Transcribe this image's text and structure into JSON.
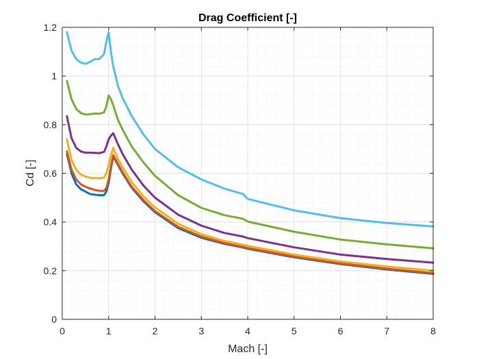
{
  "chart_data": {
    "type": "line",
    "title": "Drag Coefficient [-]",
    "xlabel": "Mach [-]",
    "ylabel": "Cd [-]",
    "xlim": [
      0,
      8
    ],
    "ylim": [
      0,
      1.2
    ],
    "xticks": [
      "0",
      "1",
      "2",
      "3",
      "4",
      "5",
      "6",
      "7",
      "8"
    ],
    "yticks": [
      "0",
      "0.2",
      "0.4",
      "0.6",
      "0.8",
      "1",
      "1.2"
    ],
    "grid": true,
    "minor_grid": true,
    "legend": "none",
    "series": [
      {
        "color": "#0072BD",
        "x": [
          0.1,
          0.2,
          0.3,
          0.4,
          0.5,
          0.6,
          0.7,
          0.8,
          0.9,
          0.95,
          1.0,
          1.05,
          1.1,
          1.2,
          1.3,
          1.5,
          1.75,
          2.0,
          2.5,
          3.0,
          3.5,
          3.9,
          4.0,
          5.0,
          6.0,
          7.0,
          8.0
        ],
        "y": [
          0.68,
          0.6,
          0.555,
          0.535,
          0.525,
          0.515,
          0.512,
          0.51,
          0.51,
          0.525,
          0.56,
          0.62,
          0.67,
          0.635,
          0.6,
          0.54,
          0.485,
          0.44,
          0.375,
          0.335,
          0.31,
          0.295,
          0.29,
          0.255,
          0.227,
          0.205,
          0.187
        ]
      },
      {
        "color": "#D95319",
        "x": [
          0.1,
          0.2,
          0.3,
          0.4,
          0.5,
          0.6,
          0.7,
          0.8,
          0.9,
          0.95,
          1.0,
          1.05,
          1.1,
          1.2,
          1.3,
          1.5,
          1.75,
          2.0,
          2.5,
          3.0,
          3.5,
          3.9,
          4.0,
          5.0,
          6.0,
          7.0,
          8.0
        ],
        "y": [
          0.69,
          0.615,
          0.575,
          0.555,
          0.545,
          0.538,
          0.532,
          0.528,
          0.528,
          0.54,
          0.575,
          0.63,
          0.675,
          0.64,
          0.605,
          0.545,
          0.49,
          0.445,
          0.38,
          0.34,
          0.313,
          0.298,
          0.293,
          0.258,
          0.23,
          0.208,
          0.19
        ]
      },
      {
        "color": "#EDB120",
        "x": [
          0.1,
          0.2,
          0.3,
          0.4,
          0.5,
          0.6,
          0.7,
          0.8,
          0.9,
          0.95,
          1.0,
          1.05,
          1.1,
          1.2,
          1.3,
          1.5,
          1.75,
          2.0,
          2.5,
          3.0,
          3.5,
          3.9,
          4.0,
          5.0,
          6.0,
          7.0,
          8.0
        ],
        "y": [
          0.74,
          0.655,
          0.615,
          0.595,
          0.587,
          0.582,
          0.58,
          0.58,
          0.582,
          0.6,
          0.635,
          0.675,
          0.705,
          0.66,
          0.625,
          0.565,
          0.505,
          0.46,
          0.393,
          0.35,
          0.322,
          0.307,
          0.302,
          0.266,
          0.238,
          0.217,
          0.2
        ]
      },
      {
        "color": "#7E2F8E",
        "x": [
          0.1,
          0.2,
          0.3,
          0.4,
          0.5,
          0.6,
          0.7,
          0.8,
          0.9,
          0.95,
          1.0,
          1.05,
          1.1,
          1.2,
          1.3,
          1.5,
          1.75,
          2.0,
          2.5,
          3.0,
          3.5,
          3.9,
          4.0,
          5.0,
          6.0,
          7.0,
          8.0
        ],
        "y": [
          0.835,
          0.745,
          0.705,
          0.69,
          0.685,
          0.685,
          0.684,
          0.683,
          0.688,
          0.71,
          0.74,
          0.755,
          0.765,
          0.72,
          0.68,
          0.615,
          0.55,
          0.5,
          0.43,
          0.385,
          0.355,
          0.34,
          0.334,
          0.296,
          0.266,
          0.248,
          0.233
        ]
      },
      {
        "color": "#77AC30",
        "x": [
          0.1,
          0.2,
          0.3,
          0.4,
          0.5,
          0.6,
          0.7,
          0.8,
          0.9,
          0.95,
          1.0,
          1.05,
          1.1,
          1.2,
          1.3,
          1.5,
          1.75,
          2.0,
          2.5,
          3.0,
          3.5,
          3.9,
          4.0,
          5.0,
          6.0,
          7.0,
          8.0
        ],
        "y": [
          0.98,
          0.905,
          0.865,
          0.848,
          0.842,
          0.843,
          0.846,
          0.845,
          0.85,
          0.875,
          0.92,
          0.905,
          0.88,
          0.82,
          0.78,
          0.71,
          0.645,
          0.59,
          0.51,
          0.458,
          0.428,
          0.413,
          0.402,
          0.36,
          0.328,
          0.308,
          0.292
        ]
      },
      {
        "color": "#4DBEEE",
        "x": [
          0.1,
          0.2,
          0.3,
          0.4,
          0.5,
          0.6,
          0.7,
          0.8,
          0.9,
          0.95,
          1.0,
          1.05,
          1.1,
          1.2,
          1.3,
          1.5,
          1.75,
          2.0,
          2.5,
          3.0,
          3.5,
          3.9,
          4.0,
          5.0,
          6.0,
          7.0,
          8.0
        ],
        "y": [
          1.18,
          1.105,
          1.07,
          1.055,
          1.05,
          1.058,
          1.07,
          1.07,
          1.09,
          1.14,
          1.18,
          1.1,
          1.04,
          0.96,
          0.91,
          0.835,
          0.76,
          0.7,
          0.625,
          0.575,
          0.537,
          0.515,
          0.495,
          0.448,
          0.416,
          0.396,
          0.382
        ]
      }
    ]
  }
}
